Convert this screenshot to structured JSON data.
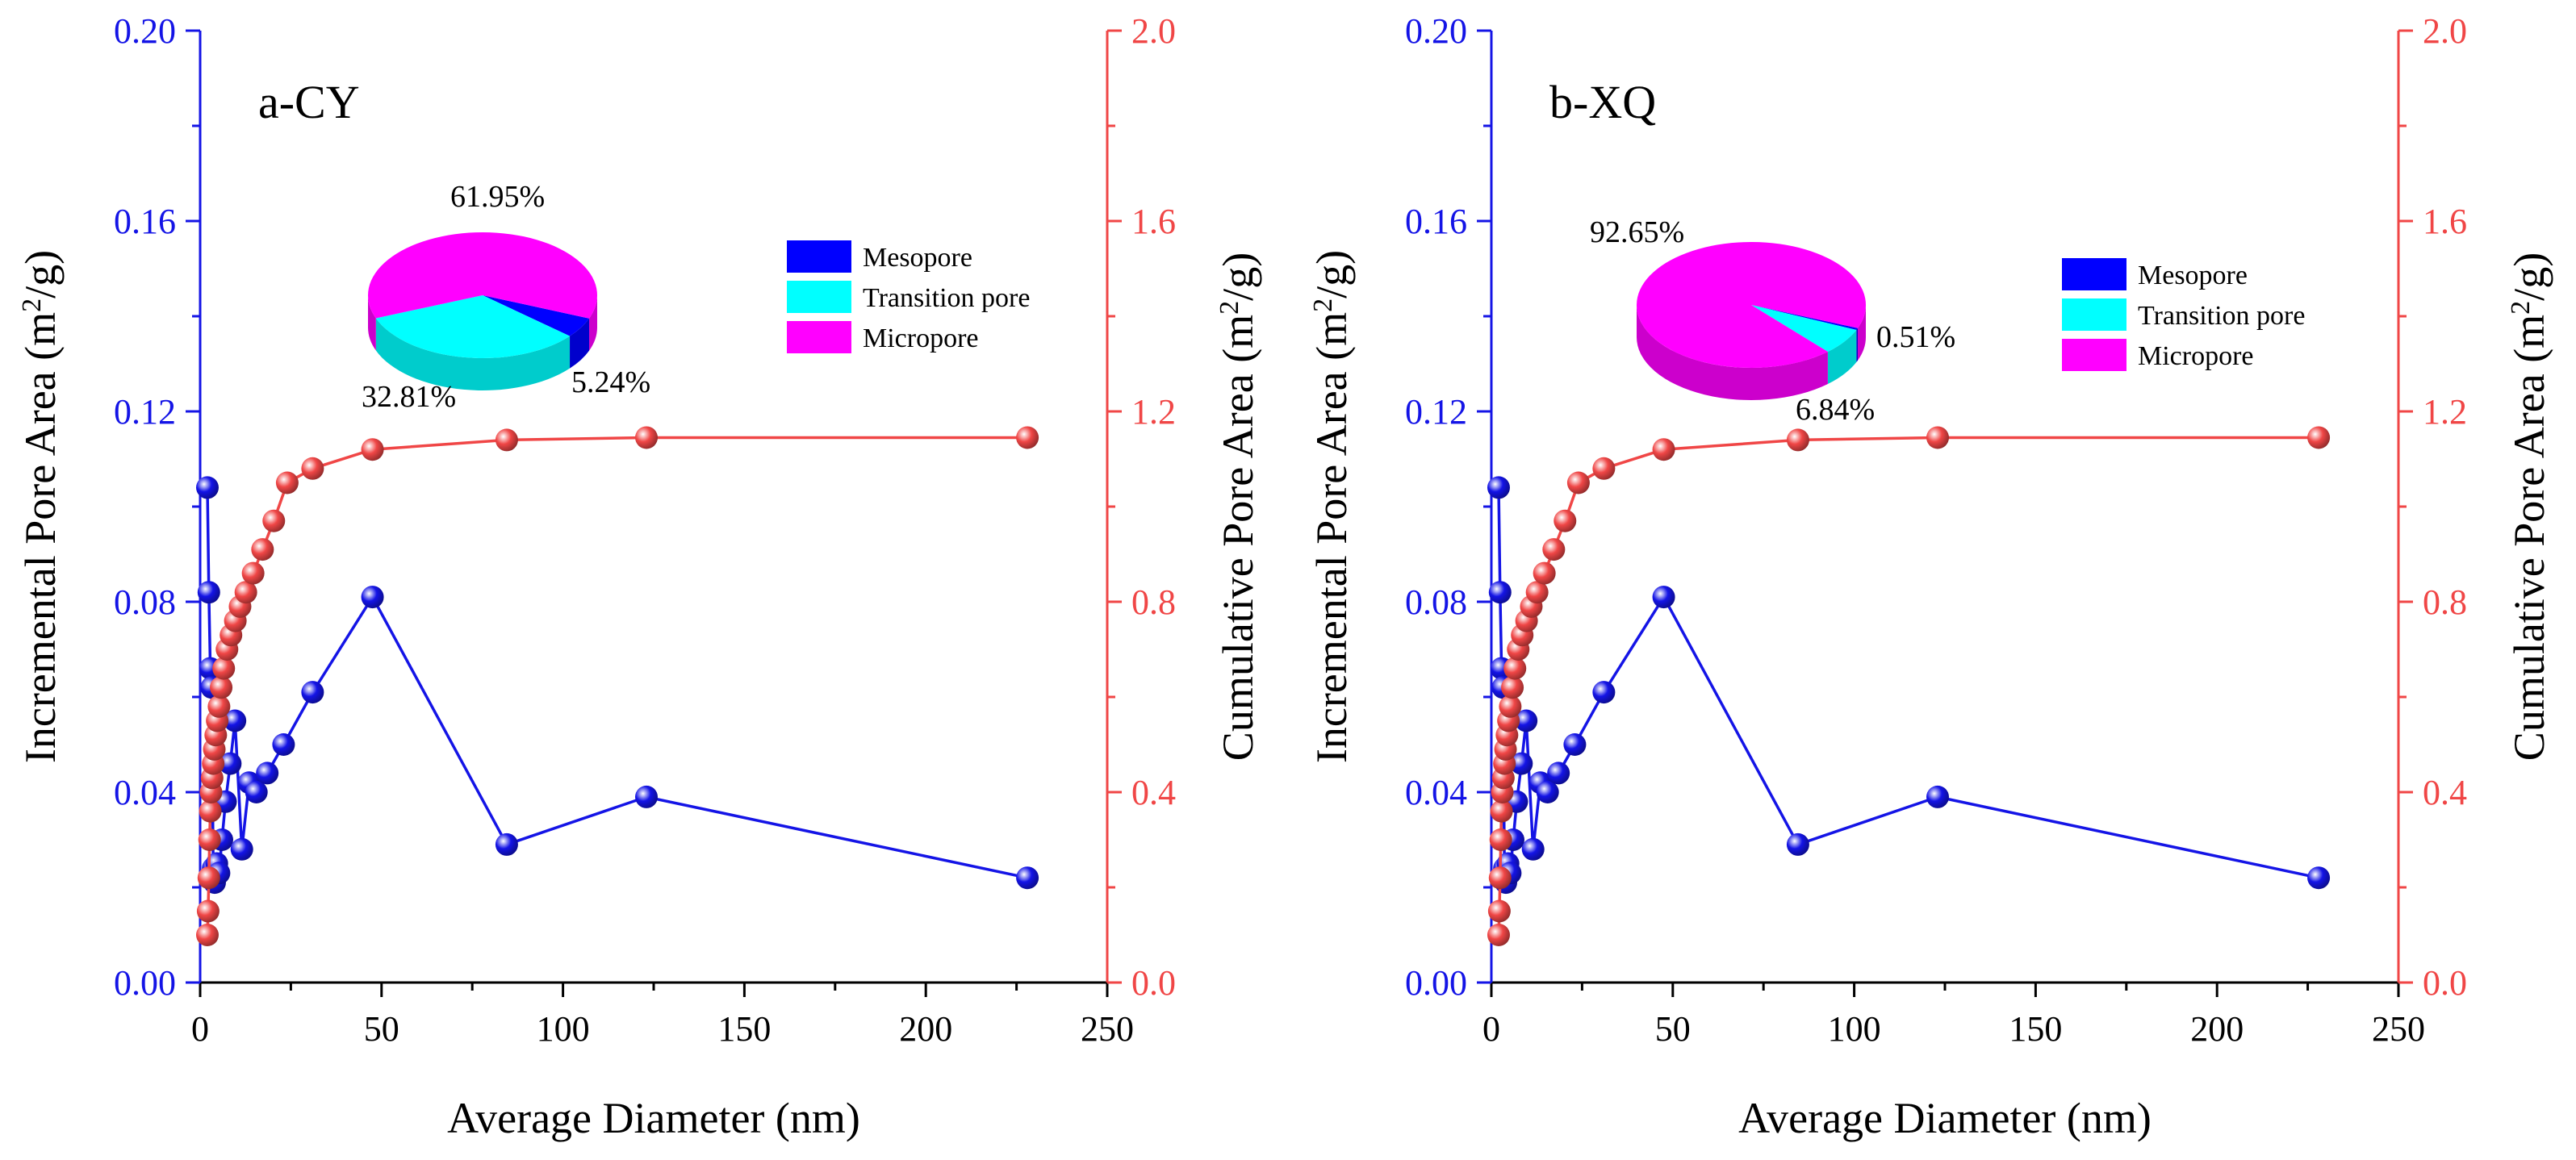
{
  "colors": {
    "blue": "#1414e6",
    "red": "#f04646",
    "mesopore": "#0000ff",
    "transition": "#00ffff",
    "micropore": "#ff00ff"
  },
  "chart_data": [
    {
      "type": "line",
      "panel_label": "a-CY",
      "xlabel": "Average Diameter (nm)",
      "ylabel_left": "Incremental Pore Area (m2/g)",
      "ylabel_left_base": "Incremental Pore Area (m",
      "ylabel_right": "Cumulative Pore Area (m2/g)",
      "ylabel_right_base": "Cumulative Pore Area (m",
      "ylabel_sup": "2",
      "ylabel_tail": "/g)",
      "xlim": [
        0,
        250
      ],
      "ylim_left": [
        0,
        0.2
      ],
      "ylim_right": [
        0,
        2.0
      ],
      "x_ticks": [
        "0",
        "50",
        "100",
        "150",
        "200",
        "250"
      ],
      "y_left_ticks": [
        "0.00",
        "0.04",
        "0.08",
        "0.12",
        "0.16",
        "0.20"
      ],
      "y_right_ticks": [
        "0.0",
        "0.4",
        "0.8",
        "1.2",
        "1.6",
        "2.0"
      ],
      "series": [
        {
          "name": "Incremental Pore Area",
          "axis": "left",
          "x": [
            2.0,
            2.4,
            2.8,
            3.2,
            3.6,
            4.0,
            4.6,
            5.2,
            6.0,
            7.0,
            8.3,
            9.6,
            11.5,
            13.5,
            15.5,
            18.5,
            23.0,
            31.0,
            47.5,
            84.5,
            123.0,
            228.0
          ],
          "y": [
            0.104,
            0.082,
            0.066,
            0.062,
            0.024,
            0.021,
            0.025,
            0.023,
            0.03,
            0.038,
            0.046,
            0.055,
            0.028,
            0.042,
            0.04,
            0.044,
            0.05,
            0.061,
            0.081,
            0.029,
            0.039,
            0.022
          ]
        },
        {
          "name": "Cumulative Pore Area",
          "axis": "right",
          "x": [
            2.0,
            2.2,
            2.4,
            2.6,
            2.8,
            3.0,
            3.3,
            3.6,
            3.9,
            4.3,
            4.7,
            5.2,
            5.8,
            6.5,
            7.4,
            8.5,
            9.7,
            11.0,
            12.6,
            14.6,
            17.2,
            20.3,
            24.0,
            31.0,
            47.5,
            84.5,
            123.0,
            228.0
          ],
          "y": [
            0.1,
            0.15,
            0.22,
            0.3,
            0.36,
            0.4,
            0.43,
            0.46,
            0.49,
            0.52,
            0.55,
            0.58,
            0.62,
            0.66,
            0.7,
            0.73,
            0.76,
            0.79,
            0.82,
            0.86,
            0.91,
            0.97,
            1.05,
            1.08,
            1.12,
            1.14,
            1.145,
            1.145
          ]
        }
      ],
      "inset_pie": {
        "slices": [
          {
            "name": "Mesopore",
            "value": 5.24,
            "label": "5.24%",
            "color": "#0000ff"
          },
          {
            "name": "Transition pore",
            "value": 32.81,
            "label": "32.81%",
            "color": "#00ffff"
          },
          {
            "name": "Micropore",
            "value": 61.95,
            "label": "61.95%",
            "color": "#ff00ff"
          }
        ],
        "legend": [
          "Mesopore",
          "Transition pore",
          "Micropore"
        ]
      }
    },
    {
      "type": "line",
      "panel_label": "b-XQ",
      "xlabel": "Average Diameter (nm)",
      "ylabel_left": "Incremental Pore Area (m2/g)",
      "ylabel_left_base": "Incremental Pore Area (m",
      "ylabel_right": "Cumulative Pore Area (m2/g)",
      "ylabel_right_base": "Cumulative Pore Area (m",
      "ylabel_sup": "2",
      "ylabel_tail": "/g)",
      "xlim": [
        0,
        250
      ],
      "ylim_left": [
        0,
        0.2
      ],
      "ylim_right": [
        0,
        2.0
      ],
      "x_ticks": [
        "0",
        "50",
        "100",
        "150",
        "200",
        "250"
      ],
      "y_left_ticks": [
        "0.00",
        "0.04",
        "0.08",
        "0.12",
        "0.16",
        "0.20"
      ],
      "y_right_ticks": [
        "0.0",
        "0.4",
        "0.8",
        "1.2",
        "1.6",
        "2.0"
      ],
      "series": [
        {
          "name": "Incremental Pore Area",
          "axis": "left",
          "x": [
            2.0,
            2.4,
            2.8,
            3.2,
            3.6,
            4.0,
            4.6,
            5.2,
            6.0,
            7.0,
            8.3,
            9.6,
            11.5,
            13.5,
            15.5,
            18.5,
            23.0,
            31.0,
            47.5,
            84.5,
            123.0,
            228.0
          ],
          "y": [
            0.104,
            0.082,
            0.066,
            0.062,
            0.024,
            0.021,
            0.025,
            0.023,
            0.03,
            0.038,
            0.046,
            0.055,
            0.028,
            0.042,
            0.04,
            0.044,
            0.05,
            0.061,
            0.081,
            0.029,
            0.039,
            0.022
          ]
        },
        {
          "name": "Cumulative Pore Area",
          "axis": "right",
          "x": [
            2.0,
            2.2,
            2.4,
            2.6,
            2.8,
            3.0,
            3.3,
            3.6,
            3.9,
            4.3,
            4.7,
            5.2,
            5.8,
            6.5,
            7.4,
            8.5,
            9.7,
            11.0,
            12.6,
            14.6,
            17.2,
            20.3,
            24.0,
            31.0,
            47.5,
            84.5,
            123.0,
            228.0
          ],
          "y": [
            0.1,
            0.15,
            0.22,
            0.3,
            0.36,
            0.4,
            0.43,
            0.46,
            0.49,
            0.52,
            0.55,
            0.58,
            0.62,
            0.66,
            0.7,
            0.73,
            0.76,
            0.79,
            0.82,
            0.86,
            0.91,
            0.97,
            1.05,
            1.08,
            1.12,
            1.14,
            1.145,
            1.145
          ]
        }
      ],
      "inset_pie": {
        "slices": [
          {
            "name": "Mesopore",
            "value": 0.51,
            "label": "0.51%",
            "color": "#0000ff"
          },
          {
            "name": "Transition pore",
            "value": 6.84,
            "label": "6.84%",
            "color": "#00ffff"
          },
          {
            "name": "Micropore",
            "value": 92.65,
            "label": "92.65%",
            "color": "#ff00ff"
          }
        ],
        "legend": [
          "Mesopore",
          "Transition pore",
          "Micropore"
        ]
      }
    }
  ]
}
